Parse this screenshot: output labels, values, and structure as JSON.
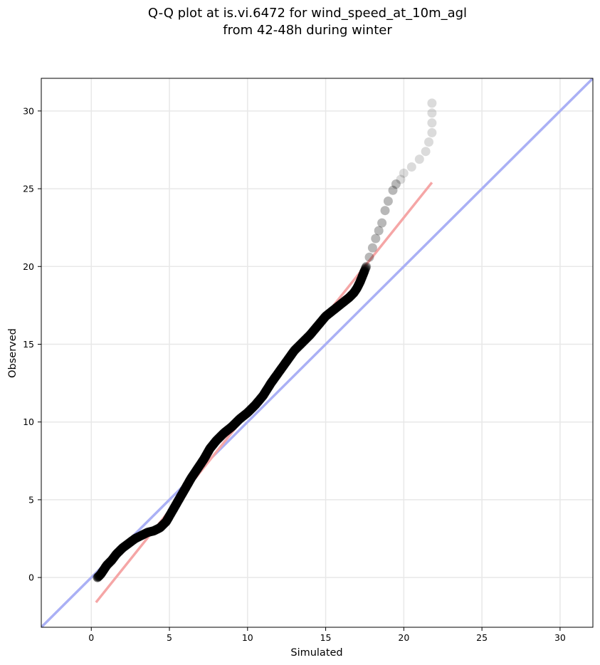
{
  "chart_data": {
    "type": "scatter",
    "title": "Q-Q plot at is.vi.6472 for wind_speed_at_10m_agl",
    "subtitle": "from 42-48h during winter",
    "xlabel": "Simulated",
    "ylabel": "Observed",
    "xlim": [
      -3.2,
      32.1
    ],
    "ylim": [
      -3.2,
      32.1
    ],
    "xticks": [
      0,
      5,
      10,
      15,
      20,
      25,
      30
    ],
    "yticks": [
      0,
      5,
      10,
      15,
      20,
      25,
      30
    ],
    "grid": true,
    "colors": {
      "points": "#000000",
      "identity_line": "#aab0f5",
      "fit_line": "#f5a6a6",
      "grid": "#e8e8e8"
    },
    "reference_lines": [
      {
        "kind": "identity",
        "x": [
          -3.2,
          32.1
        ],
        "y": [
          -3.2,
          32.1
        ]
      },
      {
        "kind": "fit",
        "x": [
          0.3,
          21.8
        ],
        "y": [
          -1.6,
          25.4
        ]
      }
    ],
    "points": {
      "x": [
        0.4,
        0.6,
        0.8,
        1.0,
        1.3,
        1.6,
        2.0,
        2.4,
        2.8,
        3.2,
        3.6,
        4.0,
        4.4,
        4.8,
        5.2,
        5.6,
        6.0,
        6.4,
        6.8,
        7.2,
        7.6,
        8.0,
        8.5,
        9.0,
        9.5,
        10.0,
        10.5,
        11.0,
        11.5,
        12.0,
        12.5,
        13.0,
        13.5,
        14.0,
        14.5,
        15.0,
        15.5,
        16.0,
        16.5,
        16.8,
        17.0,
        17.2,
        17.4,
        17.6,
        17.8,
        18.0,
        18.2,
        18.4,
        18.6,
        18.8,
        19.0,
        19.3,
        19.5,
        19.8,
        20.0,
        20.5,
        21.0,
        21.4,
        21.8
      ],
      "y": [
        0.0,
        0.2,
        0.5,
        0.8,
        1.1,
        1.5,
        1.9,
        2.2,
        2.5,
        2.7,
        2.9,
        3.0,
        3.2,
        3.6,
        4.3,
        5.0,
        5.7,
        6.4,
        7.0,
        7.6,
        8.3,
        8.8,
        9.3,
        9.7,
        10.2,
        10.6,
        11.1,
        11.7,
        12.5,
        13.2,
        13.9,
        14.6,
        15.1,
        15.6,
        16.2,
        16.8,
        17.2,
        17.6,
        18.0,
        18.3,
        18.6,
        19.0,
        19.5,
        20.0,
        20.6,
        21.2,
        21.8,
        22.3,
        22.8,
        23.6,
        24.2,
        24.9,
        25.3,
        25.6,
        26.0,
        26.4,
        26.9,
        27.4,
        28.6
      ],
      "x_tail_extra": [
        21.8
      ],
      "y_tail_extra": [
        30.5
      ]
    }
  }
}
